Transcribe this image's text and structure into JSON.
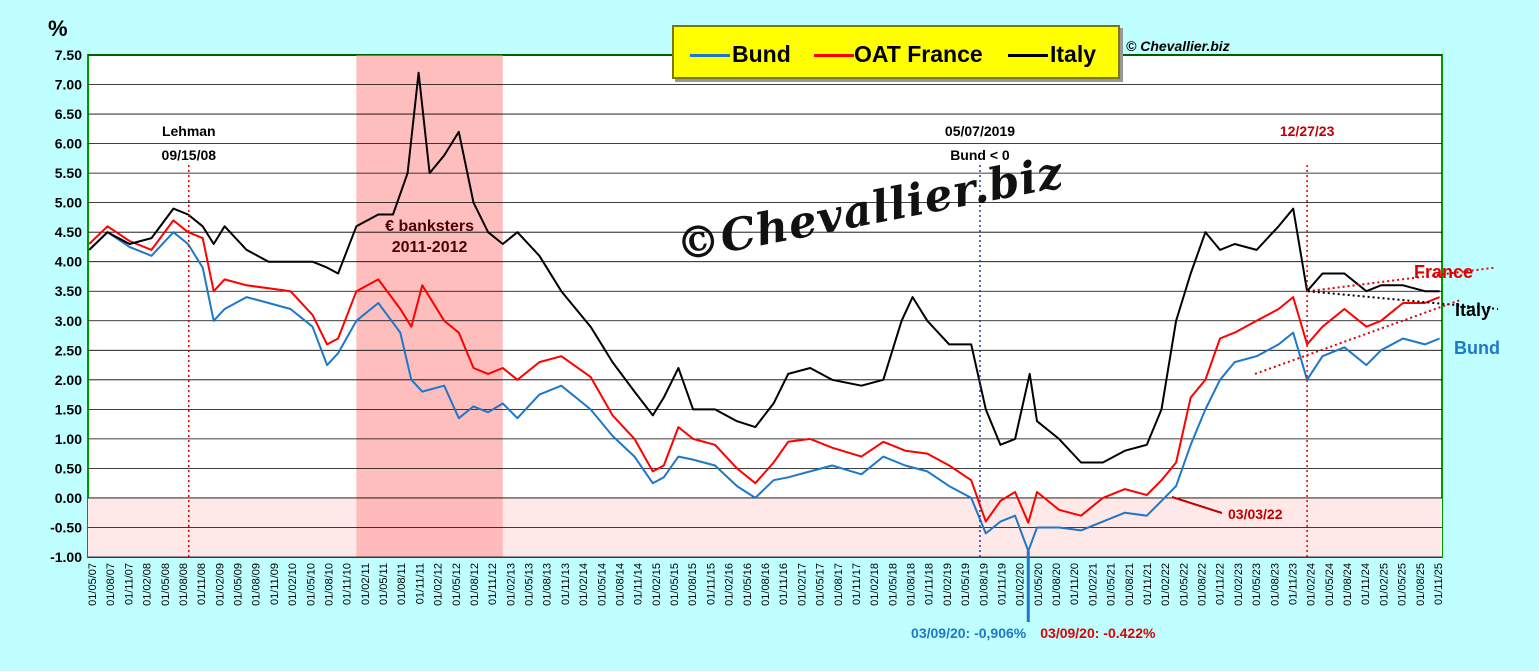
{
  "chart_data": {
    "type": "line",
    "ylabel": "%",
    "ylim": [
      -1.0,
      7.5
    ],
    "yticks": [
      "7.50",
      "7.00",
      "6.50",
      "6.00",
      "5.50",
      "5.00",
      "4.50",
      "4.00",
      "3.50",
      "3.00",
      "2.50",
      "2.00",
      "1.50",
      "1.00",
      "0.50",
      "0.00",
      "-0.50",
      "-1.00"
    ],
    "xtick_labels": [
      "01/05/07",
      "01/08/07",
      "01/11/07",
      "01/02/08",
      "01/05/08",
      "01/08/08",
      "01/11/08",
      "01/02/09",
      "01/05/09",
      "01/08/09",
      "01/11/09",
      "01/02/10",
      "01/05/10",
      "01/08/10",
      "01/11/10",
      "01/02/11",
      "01/05/11",
      "01/08/11",
      "01/11/11",
      "01/02/12",
      "01/05/12",
      "01/08/12",
      "01/11/12",
      "01/02/13",
      "01/05/13",
      "01/08/13",
      "01/11/13",
      "01/02/14",
      "01/05/14",
      "01/08/14",
      "01/11/14",
      "01/02/15",
      "01/05/15",
      "01/08/15",
      "01/11/15",
      "01/02/16",
      "01/05/16",
      "01/08/16",
      "01/11/16",
      "01/02/17",
      "01/05/17",
      "01/08/17",
      "01/11/17",
      "01/02/18",
      "01/05/18",
      "01/08/18",
      "01/11/18",
      "01/02/19",
      "01/05/19",
      "01/08/19",
      "01/11/19",
      "01/02/20",
      "01/05/20",
      "01/08/20",
      "01/11/20",
      "01/02/21",
      "01/05/21",
      "01/08/21",
      "01/11/21",
      "01/02/22",
      "01/05/22",
      "01/08/22",
      "01/11/22",
      "01/02/23",
      "01/05/23",
      "01/08/23",
      "01/11/23",
      "01/02/24",
      "01/05/24",
      "01/08/24",
      "01/11/24",
      "01/02/25",
      "01/05/25",
      "01/08/25",
      "01/11/25"
    ],
    "grid": true,
    "legend": "top-center",
    "series": [
      {
        "name": "Bund",
        "color": "#1f77c8",
        "x": [
          2007.35,
          2007.6,
          2007.9,
          2008.2,
          2008.5,
          2008.7,
          2008.9,
          2009.05,
          2009.2,
          2009.5,
          2009.8,
          2010.1,
          2010.4,
          2010.6,
          2010.75,
          2011.0,
          2011.3,
          2011.6,
          2011.75,
          2011.9,
          2012.2,
          2012.4,
          2012.6,
          2012.8,
          2013.0,
          2013.2,
          2013.5,
          2013.8,
          2014.2,
          2014.5,
          2014.8,
          2015.05,
          2015.2,
          2015.4,
          2015.6,
          2015.9,
          2016.2,
          2016.45,
          2016.7,
          2016.9,
          2017.2,
          2017.5,
          2017.9,
          2018.2,
          2018.5,
          2018.8,
          2019.1,
          2019.4,
          2019.6,
          2019.8,
          2020.0,
          2020.18,
          2020.3,
          2020.6,
          2020.9,
          2021.2,
          2021.5,
          2021.8,
          2022.0,
          2022.2,
          2022.4,
          2022.6,
          2022.8,
          2023.0,
          2023.3,
          2023.6,
          2023.8,
          2023.99,
          2024.2,
          2024.5,
          2024.8,
          2025.0,
          2025.3,
          2025.6,
          2025.8
        ],
        "y": [
          4.2,
          4.5,
          4.25,
          4.1,
          4.5,
          4.3,
          3.9,
          3.0,
          3.2,
          3.4,
          3.3,
          3.2,
          2.9,
          2.25,
          2.45,
          3.0,
          3.3,
          2.8,
          2.0,
          1.8,
          1.9,
          1.35,
          1.55,
          1.45,
          1.6,
          1.35,
          1.75,
          1.9,
          1.5,
          1.05,
          0.7,
          0.25,
          0.35,
          0.7,
          0.65,
          0.55,
          0.2,
          0.0,
          0.3,
          0.35,
          0.45,
          0.55,
          0.4,
          0.7,
          0.55,
          0.45,
          0.2,
          0.0,
          -0.6,
          -0.4,
          -0.3,
          -0.9,
          -0.5,
          -0.5,
          -0.55,
          -0.4,
          -0.25,
          -0.3,
          -0.05,
          0.2,
          0.9,
          1.5,
          2.0,
          2.3,
          2.4,
          2.6,
          2.8,
          2.0,
          2.4,
          2.55,
          2.25,
          2.5,
          2.7,
          2.6,
          2.7
        ]
      },
      {
        "name": "OAT France",
        "color": "#ff0000",
        "x": [
          2007.35,
          2007.6,
          2007.9,
          2008.2,
          2008.5,
          2008.7,
          2008.9,
          2009.05,
          2009.2,
          2009.5,
          2009.8,
          2010.1,
          2010.4,
          2010.6,
          2010.75,
          2011.0,
          2011.3,
          2011.6,
          2011.75,
          2011.9,
          2012.2,
          2012.4,
          2012.6,
          2012.8,
          2013.0,
          2013.2,
          2013.5,
          2013.8,
          2014.2,
          2014.5,
          2014.8,
          2015.05,
          2015.2,
          2015.4,
          2015.6,
          2015.9,
          2016.2,
          2016.45,
          2016.7,
          2016.9,
          2017.2,
          2017.5,
          2017.9,
          2018.2,
          2018.5,
          2018.8,
          2019.1,
          2019.4,
          2019.6,
          2019.8,
          2020.0,
          2020.18,
          2020.3,
          2020.6,
          2020.9,
          2021.2,
          2021.5,
          2021.8,
          2022.0,
          2022.2,
          2022.4,
          2022.6,
          2022.8,
          2023.0,
          2023.3,
          2023.6,
          2023.8,
          2023.99,
          2024.2,
          2024.5,
          2024.8,
          2025.0,
          2025.3,
          2025.6,
          2025.8
        ],
        "y": [
          4.3,
          4.6,
          4.35,
          4.2,
          4.7,
          4.5,
          4.4,
          3.5,
          3.7,
          3.6,
          3.55,
          3.5,
          3.1,
          2.6,
          2.7,
          3.5,
          3.7,
          3.2,
          2.9,
          3.6,
          3.0,
          2.8,
          2.2,
          2.1,
          2.2,
          2.0,
          2.3,
          2.4,
          2.05,
          1.4,
          1.0,
          0.45,
          0.55,
          1.2,
          1.0,
          0.9,
          0.5,
          0.25,
          0.6,
          0.95,
          1.0,
          0.85,
          0.7,
          0.95,
          0.8,
          0.75,
          0.55,
          0.3,
          -0.4,
          -0.05,
          0.1,
          -0.42,
          0.1,
          -0.2,
          -0.3,
          0.0,
          0.15,
          0.05,
          0.3,
          0.6,
          1.7,
          2.0,
          2.7,
          2.8,
          3.0,
          3.2,
          3.4,
          2.6,
          2.9,
          3.2,
          2.9,
          3.0,
          3.3,
          3.3,
          3.4
        ]
      },
      {
        "name": "Italy",
        "color": "#000000",
        "x": [
          2007.35,
          2007.6,
          2007.9,
          2008.2,
          2008.5,
          2008.7,
          2008.9,
          2009.05,
          2009.2,
          2009.5,
          2009.8,
          2010.1,
          2010.4,
          2010.6,
          2010.75,
          2011.0,
          2011.3,
          2011.5,
          2011.7,
          2011.85,
          2012.0,
          2012.2,
          2012.4,
          2012.6,
          2012.8,
          2013.0,
          2013.2,
          2013.5,
          2013.8,
          2014.2,
          2014.5,
          2014.8,
          2015.05,
          2015.2,
          2015.4,
          2015.6,
          2015.9,
          2016.2,
          2016.45,
          2016.7,
          2016.9,
          2017.2,
          2017.5,
          2017.9,
          2018.2,
          2018.45,
          2018.6,
          2018.8,
          2019.1,
          2019.4,
          2019.6,
          2019.8,
          2020.0,
          2020.2,
          2020.3,
          2020.6,
          2020.9,
          2021.2,
          2021.5,
          2021.8,
          2022.0,
          2022.2,
          2022.4,
          2022.6,
          2022.8,
          2023.0,
          2023.3,
          2023.6,
          2023.8,
          2023.99,
          2024.2,
          2024.5,
          2024.8,
          2025.0,
          2025.3,
          2025.6,
          2025.8
        ],
        "y": [
          4.2,
          4.5,
          4.3,
          4.4,
          4.9,
          4.8,
          4.6,
          4.3,
          4.6,
          4.2,
          4.0,
          4.0,
          4.0,
          3.9,
          3.8,
          4.6,
          4.8,
          4.8,
          5.5,
          7.2,
          5.5,
          5.8,
          6.2,
          5.0,
          4.5,
          4.3,
          4.5,
          4.1,
          3.5,
          2.9,
          2.3,
          1.8,
          1.4,
          1.7,
          2.2,
          1.5,
          1.5,
          1.3,
          1.2,
          1.6,
          2.1,
          2.2,
          2.0,
          1.9,
          2.0,
          3.0,
          3.4,
          3.0,
          2.6,
          2.6,
          1.5,
          0.9,
          1.0,
          2.1,
          1.3,
          1.0,
          0.6,
          0.6,
          0.8,
          0.9,
          1.5,
          3.0,
          3.8,
          4.5,
          4.2,
          4.3,
          4.2,
          4.6,
          4.9,
          3.5,
          3.8,
          3.8,
          3.5,
          3.6,
          3.6,
          3.5,
          3.5
        ]
      }
    ],
    "shaded_region": {
      "x_start": 2011.0,
      "x_end": 2013.0,
      "label": "€ banksters",
      "label2": "2011-2012"
    },
    "annotations": [
      {
        "x": 2008.71,
        "line1": "Lehman",
        "line2": "09/15/08",
        "color": "#000000"
      },
      {
        "x": 2019.52,
        "line1": "05/07/2019",
        "line2": "Bund < 0",
        "color": "#000000"
      },
      {
        "x": 2023.99,
        "line1": "12/27/23",
        "line2": "",
        "color": "#c00000"
      }
    ],
    "point_labels": {
      "bund_min": "03/09/20: -0,906%",
      "oat_min": "03/09/20:  -0.422%",
      "cross": "03/03/22",
      "right_france": "France",
      "right_italy": "Italy",
      "right_bund": "Bund"
    }
  },
  "legend": {
    "bund": "Bund",
    "oat": "OAT France",
    "italy": "Italy"
  },
  "copyright_small": "© Chevallier.biz",
  "watermark": "©Chevallier.biz"
}
